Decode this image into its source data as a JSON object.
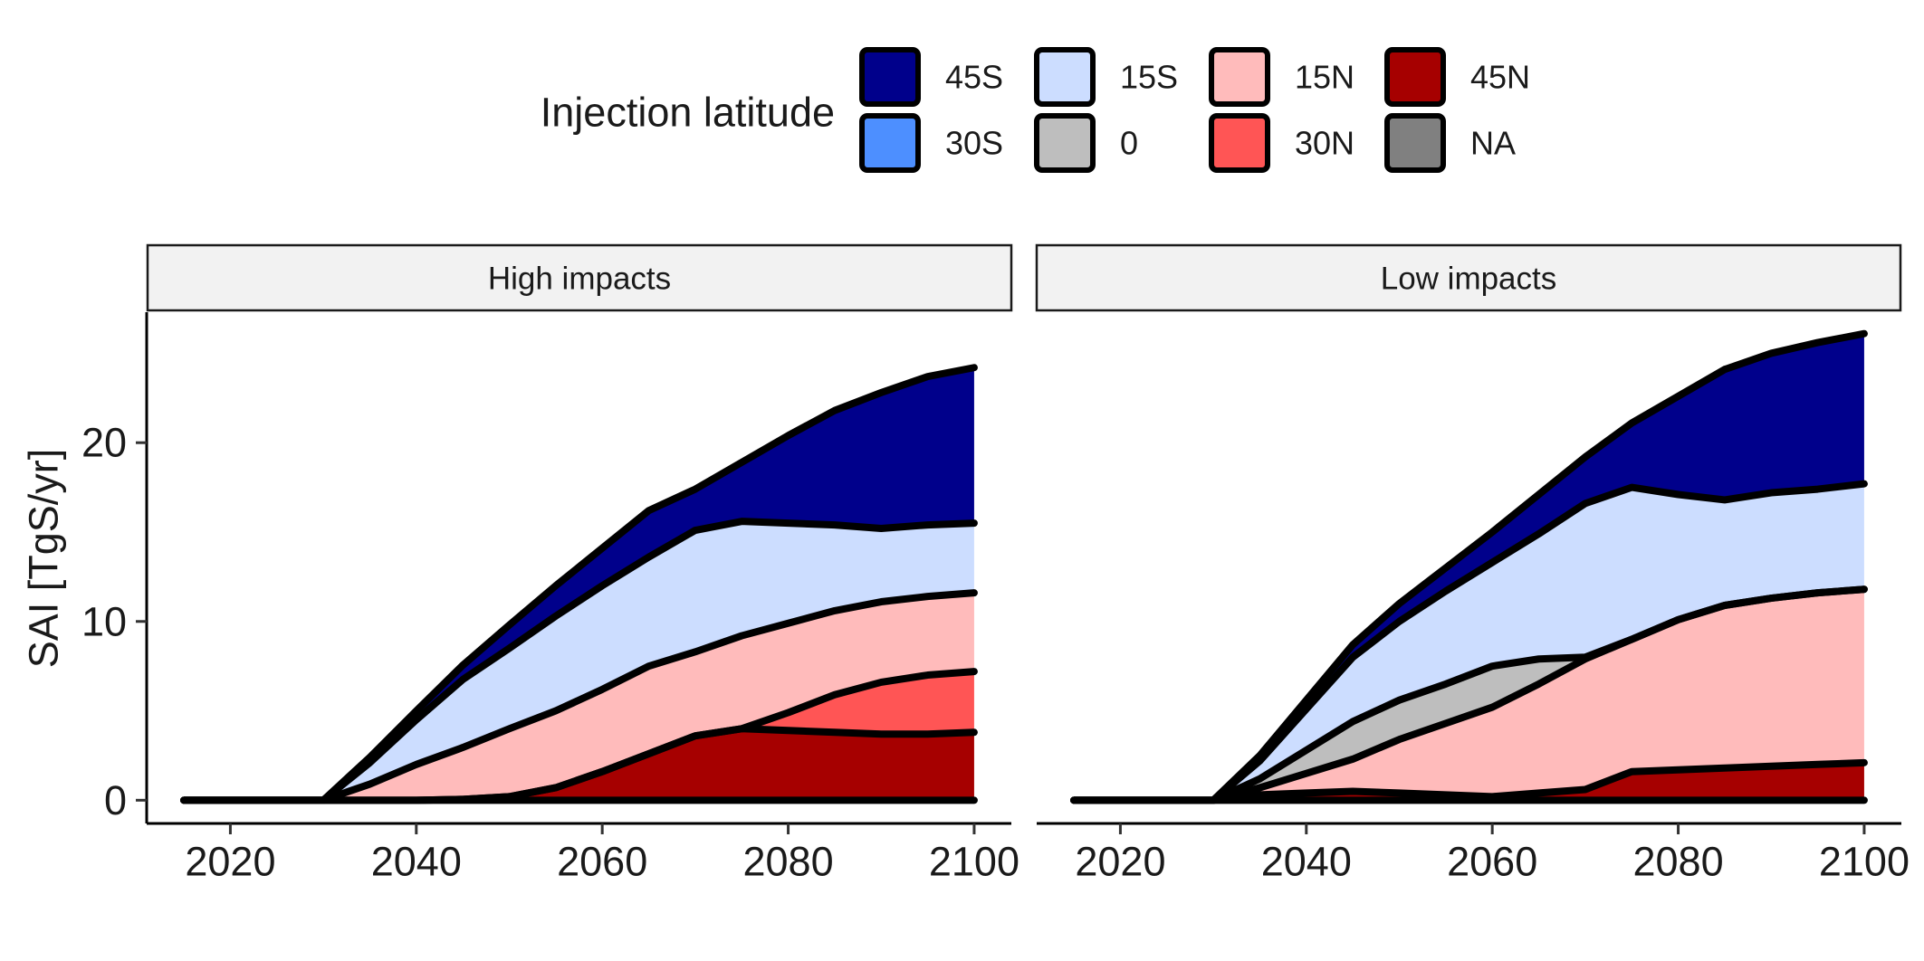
{
  "legend": {
    "title": "Injection latitude",
    "entries": [
      {
        "label": "45S",
        "color": "#00008B"
      },
      {
        "label": "30S",
        "color": "#4D8FFF"
      },
      {
        "label": "15S",
        "color": "#CCDDFF"
      },
      {
        "label": "0",
        "color": "#BEBEBE"
      },
      {
        "label": "15N",
        "color": "#FFBBBB"
      },
      {
        "label": "30N",
        "color": "#FF5555"
      },
      {
        "label": "45N",
        "color": "#A60000"
      },
      {
        "label": "NA",
        "color": "#808080"
      }
    ]
  },
  "chart_data": {
    "type": "area",
    "stacked": true,
    "ylabel": "SAI [TgS/yr]",
    "xlabel": "",
    "x_ticks": [
      2020,
      2040,
      2060,
      2080,
      2100
    ],
    "y_ticks": [
      0,
      10,
      20
    ],
    "xlim": [
      2011,
      2104
    ],
    "ylim": [
      -1.3,
      27.3
    ],
    "grid": false,
    "legend_position": "top",
    "panels": [
      {
        "title": "High impacts",
        "x": [
          2015,
          2030,
          2035,
          2040,
          2045,
          2050,
          2055,
          2060,
          2065,
          2070,
          2075,
          2080,
          2085,
          2090,
          2095,
          2100
        ],
        "series": [
          {
            "name": "45N",
            "values": [
              0,
              0,
              0,
              0,
              0.05,
              0.2,
              0.7,
              1.6,
              2.6,
              3.6,
              4.0,
              3.9,
              3.8,
              3.7,
              3.7,
              3.8
            ]
          },
          {
            "name": "30N",
            "values": [
              0,
              0,
              0,
              0,
              0,
              0,
              0,
              0,
              0,
              0,
              0,
              1.0,
              2.1,
              2.9,
              3.3,
              3.4
            ]
          },
          {
            "name": "15N",
            "values": [
              0,
              0,
              0.9,
              2.0,
              2.9,
              3.8,
              4.3,
              4.6,
              4.9,
              4.7,
              5.2,
              5.0,
              4.7,
              4.5,
              4.4,
              4.4
            ]
          },
          {
            "name": "15S",
            "values": [
              0,
              0,
              1.2,
              2.5,
              3.8,
              4.5,
              5.3,
              5.8,
              6.1,
              6.8,
              6.4,
              5.6,
              4.8,
              4.1,
              4.0,
              3.9
            ]
          },
          {
            "name": "45S",
            "values": [
              0,
              0,
              0.3,
              0.5,
              0.8,
              1.3,
              1.7,
              2.1,
              2.6,
              2.3,
              3.3,
              4.9,
              6.4,
              7.6,
              8.3,
              8.7
            ]
          }
        ]
      },
      {
        "title": "Low impacts",
        "x": [
          2015,
          2030,
          2035,
          2040,
          2045,
          2050,
          2055,
          2060,
          2065,
          2070,
          2075,
          2080,
          2085,
          2090,
          2095,
          2100
        ],
        "series": [
          {
            "name": "45N",
            "values": [
              0,
              0,
              0.3,
              0.4,
              0.5,
              0.4,
              0.3,
              0.2,
              0.4,
              0.6,
              1.6,
              1.7,
              1.8,
              1.9,
              2.0,
              2.1
            ]
          },
          {
            "name": "15N",
            "values": [
              0,
              0,
              0.4,
              1.1,
              1.8,
              3.0,
              4.0,
              5.0,
              6.1,
              7.3,
              7.4,
              8.4,
              9.1,
              9.4,
              9.6,
              9.7
            ]
          },
          {
            "name": "0",
            "values": [
              0,
              0,
              0.5,
              1.3,
              2.1,
              2.2,
              2.2,
              2.3,
              1.4,
              0.1,
              0,
              0,
              0,
              0,
              0,
              0
            ]
          },
          {
            "name": "15S",
            "values": [
              0,
              0,
              1.0,
              2.3,
              3.6,
              4.4,
              5.2,
              5.8,
              7.0,
              8.6,
              8.5,
              7.0,
              5.9,
              5.9,
              5.8,
              5.9
            ]
          },
          {
            "name": "45S",
            "values": [
              0,
              0,
              0.3,
              0.5,
              0.7,
              1.0,
              1.3,
              1.7,
              2.2,
              2.6,
              3.6,
              5.5,
              7.3,
              7.8,
              8.2,
              8.4
            ]
          }
        ]
      }
    ]
  }
}
